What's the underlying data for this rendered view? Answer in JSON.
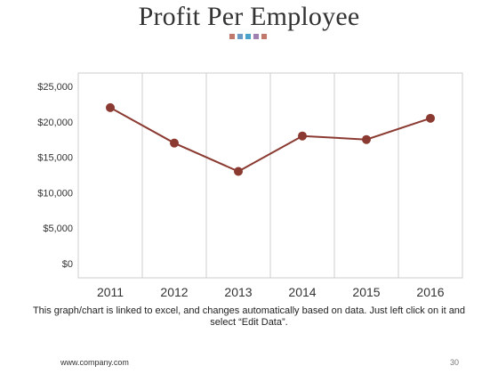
{
  "slide": {
    "title": "Profit Per Employee",
    "caption": "This graph/chart is linked to excel, and changes automatically based on data. Just left click on it and select “Edit Data”.",
    "footer_url": "www.company.com",
    "page_number": "30",
    "title_square_colors": [
      "#c0786b",
      "#6b9ac4",
      "#4aa3c9",
      "#a07fb1",
      "#c0786b"
    ]
  },
  "chart_data": {
    "type": "line",
    "title": "",
    "xlabel": "",
    "ylabel": "",
    "categories": [
      "2011",
      "2012",
      "2013",
      "2014",
      "2015",
      "2016"
    ],
    "series": [
      {
        "name": "",
        "values": [
          22000,
          17000,
          13000,
          18000,
          17500,
          20500
        ]
      }
    ],
    "ylim": [
      0,
      25000
    ],
    "yticks": [
      0,
      5000,
      10000,
      15000,
      20000,
      25000
    ],
    "ytick_labels": [
      "$0",
      "$5,000",
      "$10,000",
      "$15,000",
      "$20,000",
      "$25,000"
    ],
    "grid": "vertical",
    "line_color": "#8b3a32",
    "marker_color": "#8b3a32",
    "frame_color": "#cccccc"
  }
}
